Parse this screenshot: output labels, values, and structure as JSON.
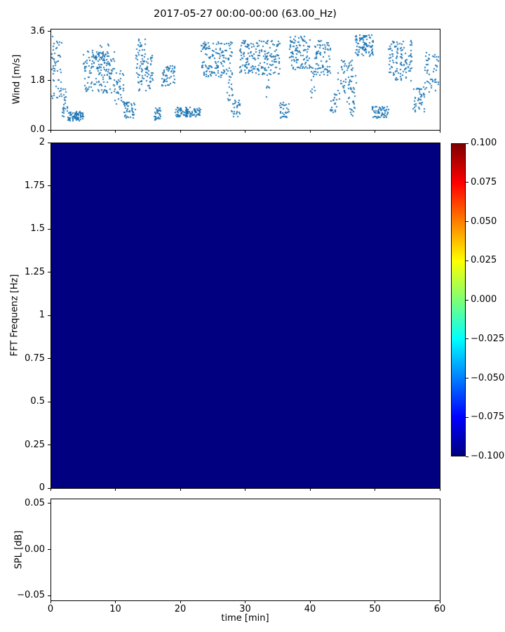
{
  "figure": {
    "title": "2017-05-27 00:00-00:00 (63.00_Hz)",
    "background_color": "#ffffff",
    "axis_color": "#000000"
  },
  "chart_data": [
    {
      "id": "wind",
      "type": "scatter",
      "ylabel": "Wind [m/s]",
      "ylim": [
        0,
        3.7
      ],
      "xlim": [
        0,
        60
      ],
      "yticks": [
        {
          "v": 0.0,
          "label": "0.0"
        },
        {
          "v": 1.8,
          "label": "1.8"
        },
        {
          "v": 3.6,
          "label": "3.6"
        }
      ],
      "marker_color": "#1f77b4",
      "marker_size_px": 2,
      "segment_format": "[t_start_min, t_end_min, wind_min_ms, wind_max_ms, n_points]",
      "point_segments": [
        [
          0.0,
          1.6,
          1.1,
          3.45,
          55
        ],
        [
          1.6,
          2.6,
          0.45,
          1.5,
          25
        ],
        [
          2.6,
          5.0,
          0.3,
          0.65,
          70
        ],
        [
          5.0,
          9.8,
          1.35,
          2.9,
          150
        ],
        [
          6.0,
          9.0,
          2.2,
          3.2,
          30
        ],
        [
          9.8,
          11.3,
          0.9,
          2.2,
          35
        ],
        [
          11.3,
          13.0,
          0.4,
          1.0,
          45
        ],
        [
          13.0,
          15.8,
          1.4,
          2.8,
          80
        ],
        [
          13.2,
          14.6,
          2.8,
          3.35,
          15
        ],
        [
          15.8,
          17.0,
          0.35,
          0.8,
          30
        ],
        [
          17.0,
          19.2,
          1.6,
          2.35,
          55
        ],
        [
          19.2,
          23.2,
          0.45,
          0.8,
          95
        ],
        [
          23.2,
          28.0,
          1.9,
          3.25,
          150
        ],
        [
          27.2,
          28.2,
          0.6,
          1.9,
          18
        ],
        [
          28.2,
          29.2,
          0.45,
          1.1,
          22
        ],
        [
          29.2,
          35.4,
          2.0,
          3.3,
          185
        ],
        [
          33.2,
          33.8,
          0.9,
          1.9,
          8
        ],
        [
          35.4,
          36.8,
          0.4,
          1.0,
          32
        ],
        [
          36.8,
          40.0,
          2.2,
          3.45,
          105
        ],
        [
          40.0,
          40.8,
          1.1,
          2.4,
          14
        ],
        [
          40.8,
          43.2,
          2.0,
          3.3,
          75
        ],
        [
          43.2,
          44.2,
          0.55,
          1.3,
          20
        ],
        [
          44.2,
          47.2,
          1.0,
          2.6,
          70
        ],
        [
          46.0,
          47.0,
          0.5,
          0.95,
          12
        ],
        [
          47.0,
          49.8,
          2.7,
          3.52,
          105
        ],
        [
          49.6,
          52.2,
          0.4,
          0.85,
          60
        ],
        [
          52.2,
          56.0,
          1.8,
          3.3,
          115
        ],
        [
          56.0,
          57.8,
          0.6,
          1.6,
          40
        ],
        [
          57.8,
          60.0,
          1.3,
          2.85,
          50
        ]
      ]
    },
    {
      "id": "fft",
      "type": "heatmap",
      "ylabel": "FFT Frequenz [Hz]",
      "ylim": [
        0,
        2
      ],
      "xlim": [
        0,
        60
      ],
      "yticks": [
        {
          "v": 2,
          "label": "2"
        },
        {
          "v": 1.75,
          "label": "1.75"
        },
        {
          "v": 1.5,
          "label": "1.5"
        },
        {
          "v": 1.25,
          "label": "1.25"
        },
        {
          "v": 1,
          "label": "1"
        },
        {
          "v": 0.75,
          "label": "0.75"
        },
        {
          "v": 0.5,
          "label": "0.5"
        },
        {
          "v": 0.25,
          "label": "0.25"
        },
        {
          "v": 0,
          "label": "0"
        }
      ],
      "uniform_value": -0.1,
      "fill_color": "#000080",
      "colorbar": {
        "vmin": -0.1,
        "vmax": 0.1,
        "colormap": "jet",
        "ticks": [
          {
            "v": 0.1,
            "label": "0.100"
          },
          {
            "v": 0.075,
            "label": "0.075"
          },
          {
            "v": 0.05,
            "label": "0.050"
          },
          {
            "v": 0.025,
            "label": "0.025"
          },
          {
            "v": 0.0,
            "label": "0.000"
          },
          {
            "v": -0.025,
            "label": "−0.025"
          },
          {
            "v": -0.05,
            "label": "−0.050"
          },
          {
            "v": -0.075,
            "label": "−0.075"
          },
          {
            "v": -0.1,
            "label": "−0.100"
          }
        ],
        "gradient": [
          [
            "#7f0000",
            0
          ],
          [
            "#ff0000",
            12.5
          ],
          [
            "#ffff00",
            37.5
          ],
          [
            "#7dff75",
            50
          ],
          [
            "#00ffff",
            62.5
          ],
          [
            "#0000ff",
            87.5
          ],
          [
            "#000080",
            100
          ]
        ]
      }
    },
    {
      "id": "spl",
      "type": "line",
      "ylabel": "SPL [dB]",
      "xlabel": "time [min]",
      "ylim": [
        -0.055,
        0.055
      ],
      "xlim": [
        0,
        60
      ],
      "yticks": [
        {
          "v": 0.05,
          "label": "0.05"
        },
        {
          "v": 0.0,
          "label": "0.00"
        },
        {
          "v": -0.05,
          "label": "−0.05"
        }
      ],
      "xticks": [
        {
          "v": 0,
          "label": "0"
        },
        {
          "v": 10,
          "label": "10"
        },
        {
          "v": 20,
          "label": "20"
        },
        {
          "v": 30,
          "label": "30"
        },
        {
          "v": 40,
          "label": "40"
        },
        {
          "v": 50,
          "label": "50"
        },
        {
          "v": 60,
          "label": "60"
        }
      ],
      "series": []
    }
  ]
}
